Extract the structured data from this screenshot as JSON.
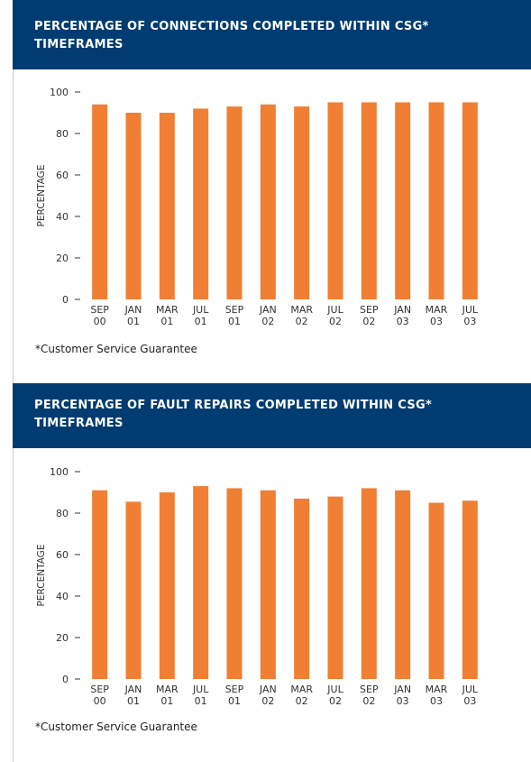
{
  "chart_data": [
    {
      "type": "bar",
      "title": [
        "PERCENTAGE OF CONNECTIONS COMPLETED WITHIN CSG*",
        "TIMEFRAMES"
      ],
      "y_label": "PERCENTAGE",
      "footnote": "*Customer Service Guarantee",
      "categories": [
        [
          "SEP",
          "00"
        ],
        [
          "JAN",
          "01"
        ],
        [
          "MAR",
          "01"
        ],
        [
          "JUL",
          "01"
        ],
        [
          "SEP",
          "01"
        ],
        [
          "JAN",
          "02"
        ],
        [
          "MAR",
          "02"
        ],
        [
          "JUL",
          "02"
        ],
        [
          "SEP",
          "02"
        ],
        [
          "JAN",
          "03"
        ],
        [
          "MAR",
          "03"
        ],
        [
          "JUL",
          "03"
        ]
      ],
      "values": [
        94,
        90,
        90,
        92,
        93,
        94,
        93,
        95,
        95,
        95,
        95,
        95
      ],
      "color": "#f07f34",
      "ylim": [
        0,
        100
      ],
      "yticks": [
        0,
        20,
        40,
        60,
        80,
        100
      ]
    },
    {
      "type": "bar",
      "title": [
        "PERCENTAGE OF FAULT REPAIRS COMPLETED WITHIN CSG*",
        "TIMEFRAMES"
      ],
      "y_label": "PERCENTAGE",
      "footnote": "*Customer Service Guarantee",
      "categories": [
        [
          "SEP",
          "00"
        ],
        [
          "JAN",
          "01"
        ],
        [
          "MAR",
          "01"
        ],
        [
          "JUL",
          "01"
        ],
        [
          "SEP",
          "01"
        ],
        [
          "JAN",
          "02"
        ],
        [
          "MAR",
          "02"
        ],
        [
          "JUL",
          "02"
        ],
        [
          "SEP",
          "02"
        ],
        [
          "JAN",
          "03"
        ],
        [
          "MAR",
          "03"
        ],
        [
          "JUL",
          "03"
        ]
      ],
      "values": [
        91,
        85.5,
        90,
        93,
        92,
        91,
        87,
        88,
        92,
        91,
        85,
        86
      ],
      "color": "#f07f34",
      "ylim": [
        0,
        100
      ],
      "yticks": [
        0,
        20,
        40,
        60,
        80,
        100
      ]
    }
  ]
}
